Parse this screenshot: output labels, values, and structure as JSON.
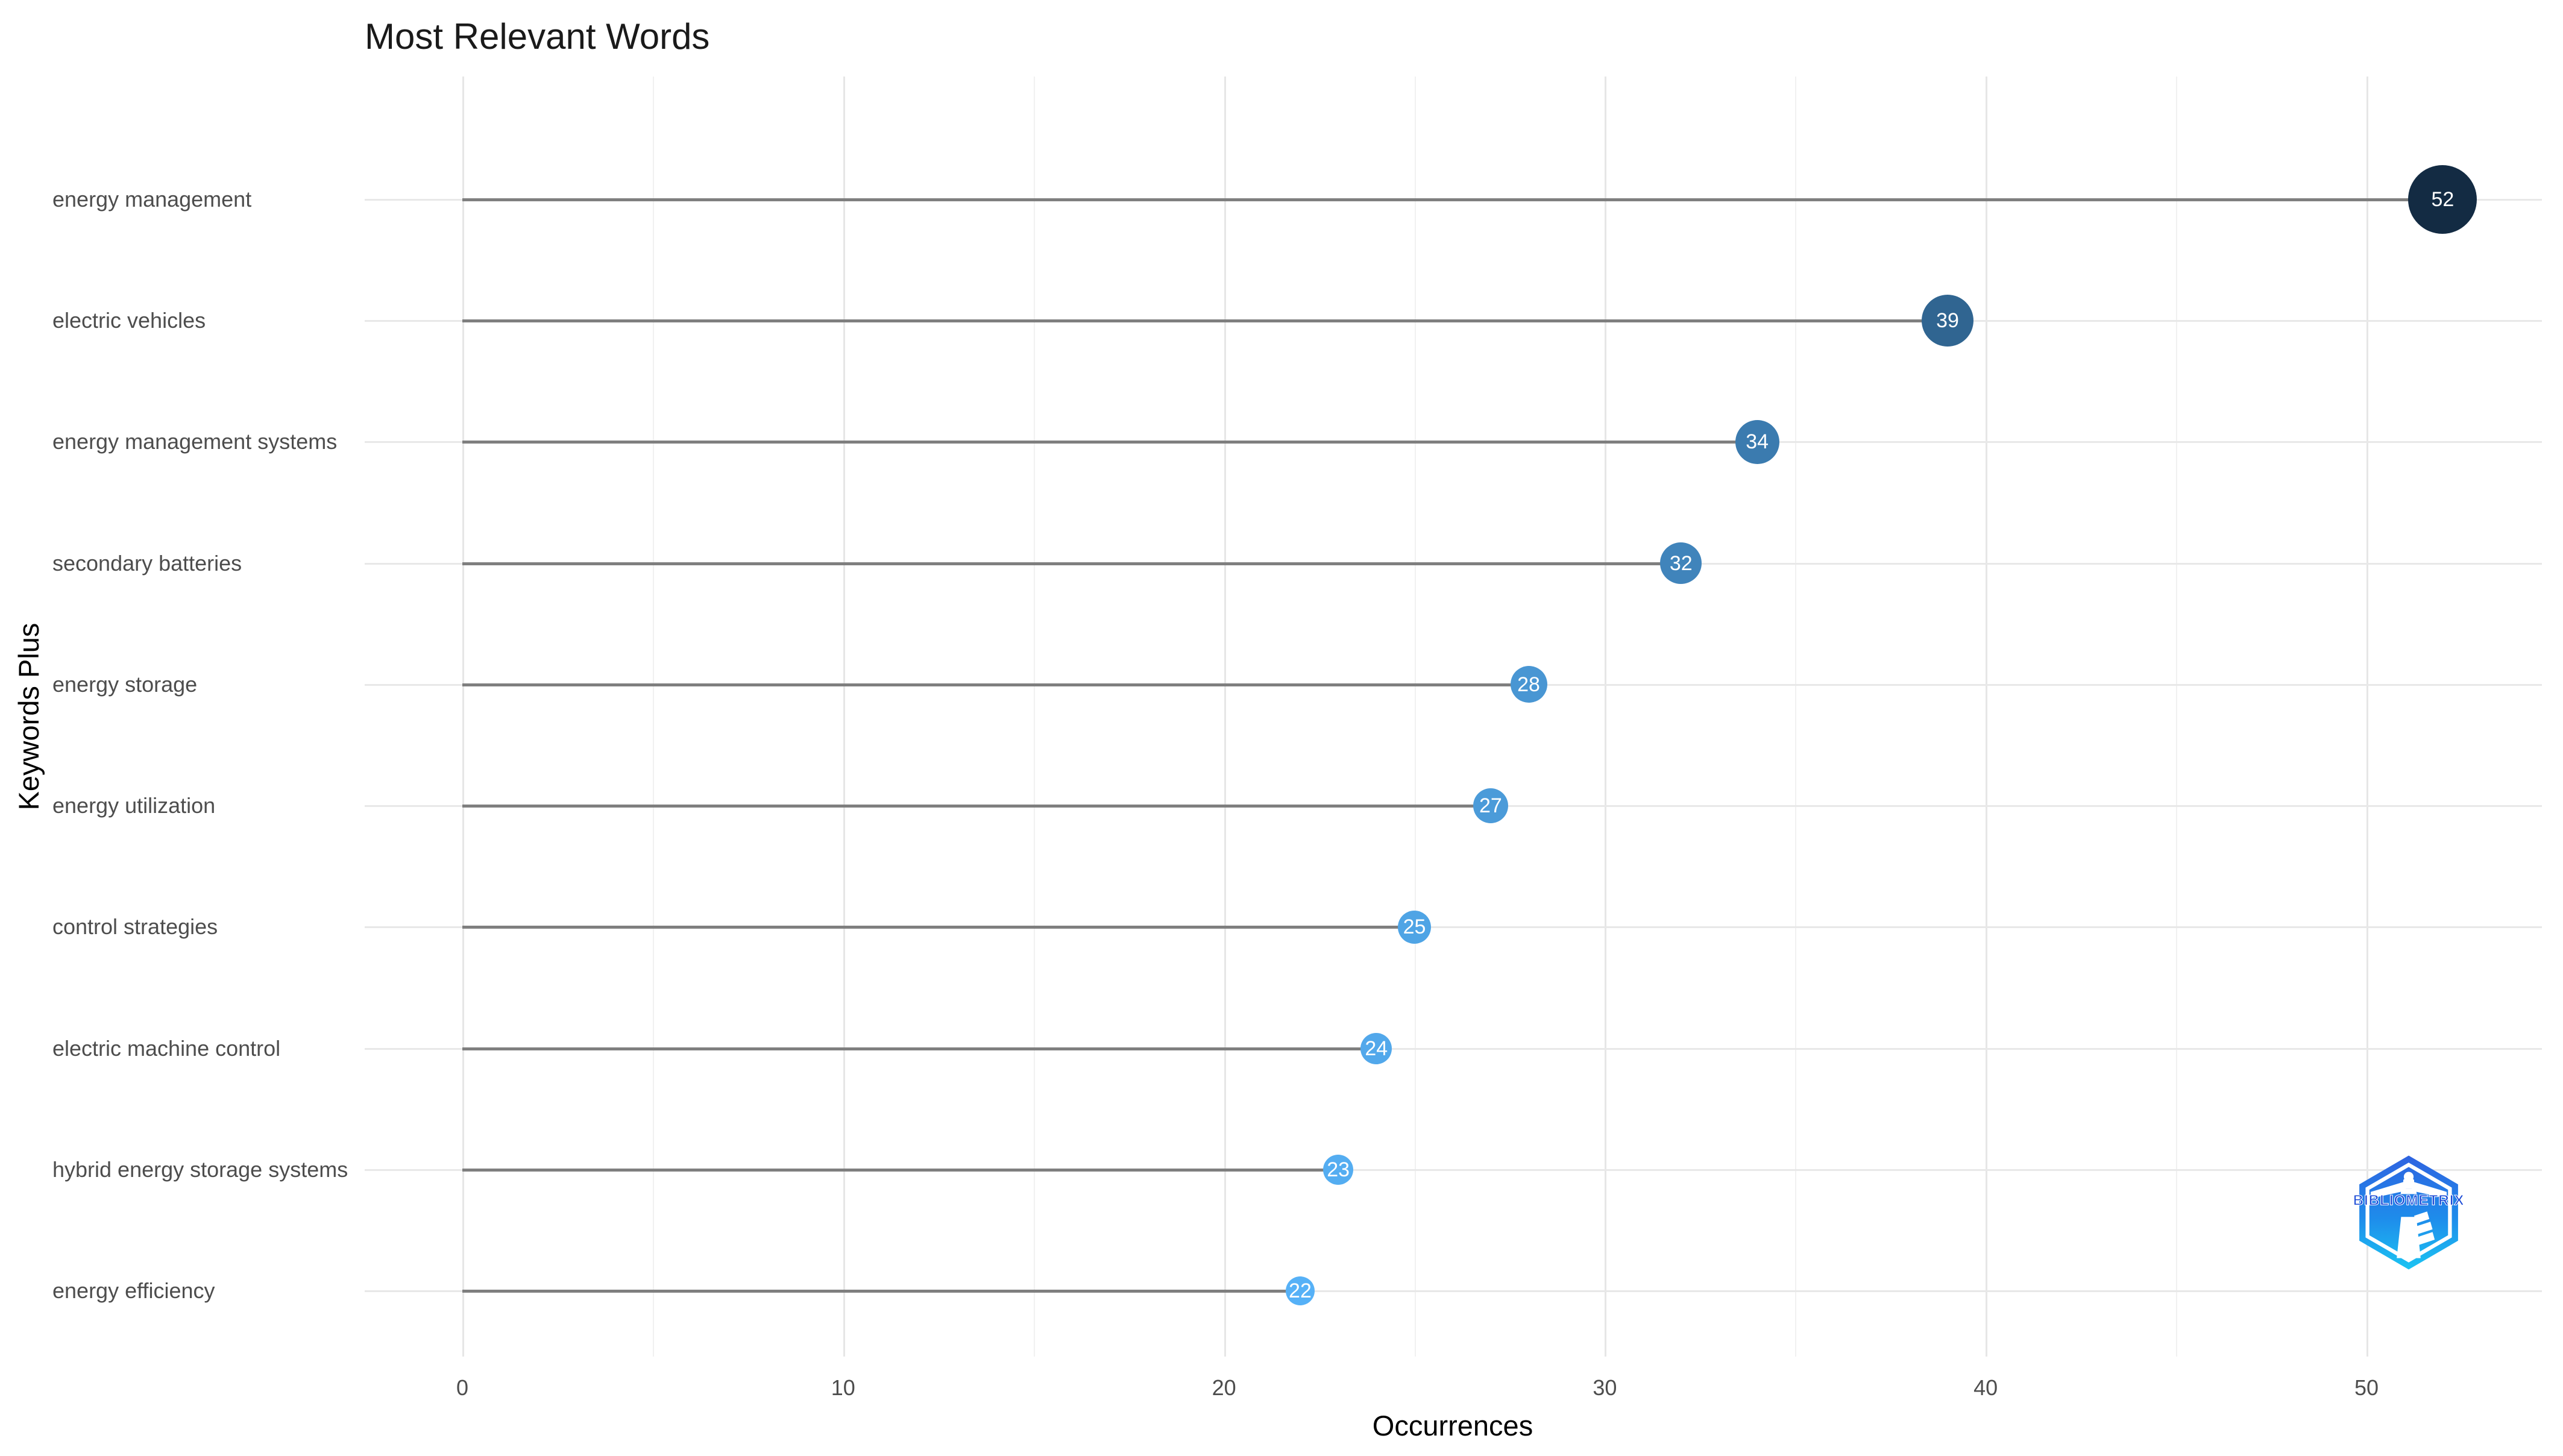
{
  "title": "Most Relevant Words",
  "axes": {
    "x_label": "Occurrences",
    "y_label": "Keywords Plus",
    "x_ticks": [
      0,
      10,
      20,
      30,
      40,
      50
    ],
    "x_minor_ticks": [
      5,
      15,
      25,
      35,
      45
    ]
  },
  "watermark": {
    "text": "BIBLIOMETRIX"
  },
  "items": [
    {
      "label": "energy management",
      "value": 52,
      "color": "#132B43",
      "diameter": 114
    },
    {
      "label": "electric vehicles",
      "value": 39,
      "color": "#306591",
      "diameter": 86
    },
    {
      "label": "energy management systems",
      "value": 34,
      "color": "#3B7BAF",
      "diameter": 73
    },
    {
      "label": "secondary batteries",
      "value": 32,
      "color": "#4084BB",
      "diameter": 69
    },
    {
      "label": "energy storage",
      "value": 28,
      "color": "#4996D3",
      "diameter": 61
    },
    {
      "label": "energy utilization",
      "value": 27,
      "color": "#4B9BD9",
      "diameter": 58
    },
    {
      "label": "control strategies",
      "value": 25,
      "color": "#4FA4E5",
      "diameter": 55
    },
    {
      "label": "electric machine control",
      "value": 24,
      "color": "#52A8EB",
      "diameter": 52
    },
    {
      "label": "hybrid energy storage systems",
      "value": 23,
      "color": "#54ADF1",
      "diameter": 50
    },
    {
      "label": "energy efficiency",
      "value": 22,
      "color": "#56B1F7",
      "diameter": 48
    }
  ],
  "chart_data": {
    "type": "bar",
    "variant": "horizontal-lollipop",
    "title": "Most Relevant Words",
    "xlabel": "Occurrences",
    "ylabel": "Keywords Plus",
    "categories": [
      "energy management",
      "electric vehicles",
      "energy management systems",
      "secondary batteries",
      "energy storage",
      "energy utilization",
      "control strategies",
      "electric machine control",
      "hybrid energy storage systems",
      "energy efficiency"
    ],
    "values": [
      52,
      39,
      34,
      32,
      28,
      27,
      25,
      24,
      23,
      22
    ],
    "data_labels_shown": true,
    "xlim": [
      -2.6,
      54.6
    ],
    "x_ticks": [
      0,
      10,
      20,
      30,
      40,
      50
    ],
    "grid": true,
    "legend": false,
    "point_color_scale": {
      "low_value_color": "#56B1F7",
      "high_value_color": "#132B43"
    },
    "stem_color": "#7f7f7f",
    "background_color": "#ffffff"
  }
}
